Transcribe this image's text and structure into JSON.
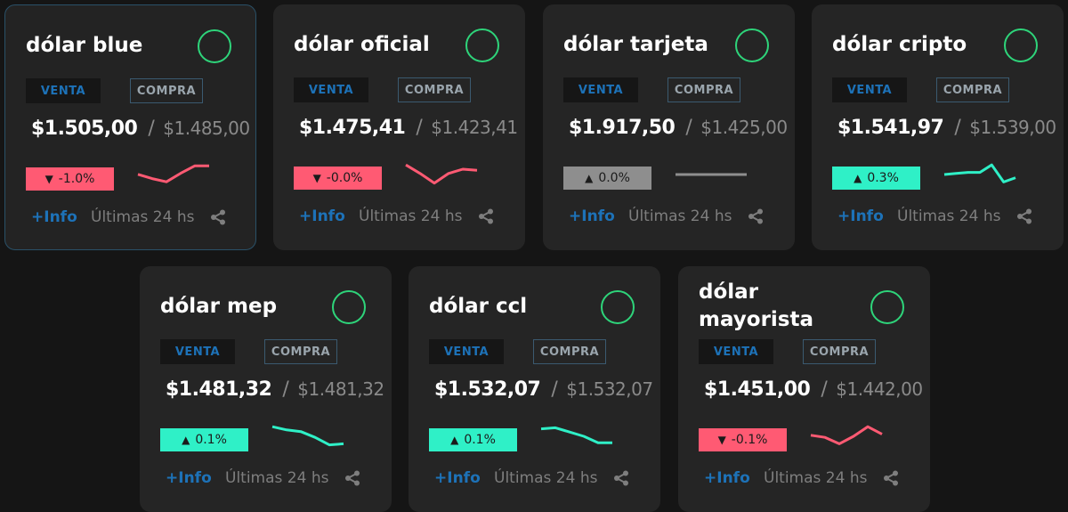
{
  "labels": {
    "venta": "VENTA",
    "compra": "COMPRA",
    "info": "+Info",
    "period": "Últimas 24 hs"
  },
  "colors": {
    "down": "#ff5a73",
    "up": "#2ff0c7",
    "flat": "#8e8e8e",
    "status_ring": "#2ed47a",
    "link": "#1d72b8"
  },
  "cards": [
    {
      "title": "dólar blue",
      "venta": "$1.505,00",
      "compra": "$1.485,00",
      "change": "-1.0%",
      "trend": "down",
      "spark": [
        0.55,
        0.35,
        0.2,
        0.6,
        0.95,
        0.95
      ]
    },
    {
      "title": "dólar oficial",
      "venta": "$1.475,41",
      "compra": "$1.423,41",
      "change": "-0.0%",
      "trend": "down",
      "spark": [
        0.95,
        0.55,
        0.1,
        0.55,
        0.75,
        0.7
      ]
    },
    {
      "title": "dólar tarjeta",
      "venta": "$1.917,50",
      "compra": "$1.425,00",
      "change": "0.0%",
      "trend": "flat",
      "spark": [
        0.5,
        0.5,
        0.5,
        0.5,
        0.5,
        0.5
      ]
    },
    {
      "title": "dólar cripto",
      "venta": "$1.541,97",
      "compra": "$1.539,00",
      "change": "0.3%",
      "trend": "up",
      "spark": [
        0.5,
        0.55,
        0.6,
        0.6,
        0.95,
        0.15,
        0.35
      ]
    },
    {
      "title": "dólar mep",
      "venta": "$1.481,32",
      "compra": "$1.481,32",
      "change": "0.1%",
      "trend": "up",
      "spark": [
        0.95,
        0.8,
        0.72,
        0.45,
        0.1,
        0.15
      ]
    },
    {
      "title": "dólar ccl",
      "venta": "$1.532,07",
      "compra": "$1.532,07",
      "change": "0.1%",
      "trend": "up",
      "spark": [
        0.85,
        0.9,
        0.7,
        0.5,
        0.2,
        0.2
      ]
    },
    {
      "title": "dólar mayorista",
      "venta": "$1.451,00",
      "compra": "$1.442,00",
      "change": "-0.1%",
      "trend": "down",
      "spark": [
        0.55,
        0.45,
        0.15,
        0.5,
        0.95,
        0.6
      ]
    }
  ]
}
